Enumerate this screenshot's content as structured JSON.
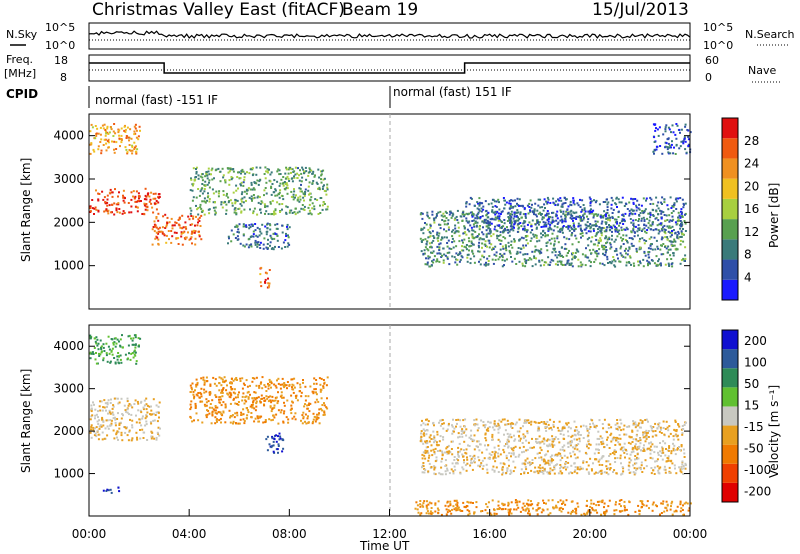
{
  "header": {
    "station": "Christmas Valley East (fitACF)",
    "beam": "Beam 19",
    "date": "15/Jul/2013"
  },
  "aux_panels": {
    "nsky_label": "N.Sky",
    "nsearch_label": "N.Search",
    "noise_ticks": [
      "10^5",
      "10^0"
    ],
    "freq_label_1": "Freq.",
    "freq_label_2": "[MHz]",
    "freq_ticks": [
      "18",
      "8"
    ],
    "nave_label": "Nave",
    "nave_ticks": [
      "60",
      "0"
    ],
    "cpid_label": "CPID",
    "cpid_segments": [
      {
        "label": "normal (fast) -151 IF",
        "start_hour": 0,
        "end_hour": 12
      },
      {
        "label": "normal (fast) 151 IF",
        "start_hour": 12,
        "end_hour": 24
      }
    ]
  },
  "colors": {
    "power_scale": [
      "#1a1aff",
      "#2f4fa8",
      "#3a7a7a",
      "#58a050",
      "#a8d040",
      "#f0c020",
      "#f09020",
      "#f05a10",
      "#e01010"
    ],
    "velocity_scale": [
      "#1010d0",
      "#2d5a9a",
      "#2e8b57",
      "#60c030",
      "#c8c8c0",
      "#e8a020",
      "#f07a00",
      "#f04000",
      "#e00000"
    ]
  },
  "chart_data": [
    {
      "type": "heatmap",
      "name": "power",
      "ylabel": "Slant Range [km]",
      "xlabel": "",
      "xlim": [
        0,
        24
      ],
      "ylim": [
        0,
        4500
      ],
      "yticks": [
        1000,
        2000,
        3000,
        4000
      ],
      "colorbar": {
        "label": "Power [dB]",
        "ticks": [
          4,
          8,
          12,
          16,
          20,
          24,
          28
        ],
        "range": [
          0,
          32
        ]
      },
      "features": [
        {
          "t": [
            0.0,
            2.8
          ],
          "range": [
            2200,
            2800
          ],
          "level": 28
        },
        {
          "t": [
            0.0,
            2.0
          ],
          "range": [
            3600,
            4300
          ],
          "level": 22
        },
        {
          "t": [
            2.5,
            4.5
          ],
          "range": [
            1500,
            2200
          ],
          "level": 26
        },
        {
          "t": [
            4.0,
            9.5
          ],
          "range": [
            2200,
            3300
          ],
          "level": 12
        },
        {
          "t": [
            5.5,
            8.0
          ],
          "range": [
            1400,
            2000
          ],
          "level": 8
        },
        {
          "t": [
            6.8,
            7.2
          ],
          "range": [
            500,
            1000
          ],
          "level": 26
        },
        {
          "t": [
            13.2,
            23.8
          ],
          "range": [
            1000,
            2300
          ],
          "level": 10
        },
        {
          "t": [
            15.0,
            23.8
          ],
          "range": [
            1800,
            2600
          ],
          "level": 6
        },
        {
          "t": [
            22.5,
            24.0
          ],
          "range": [
            3600,
            4300
          ],
          "level": 6
        }
      ]
    },
    {
      "type": "heatmap",
      "name": "velocity",
      "ylabel": "Slant Range [km]",
      "xlabel": "Time UT",
      "xlim": [
        0,
        24
      ],
      "ylim": [
        0,
        4500
      ],
      "yticks": [
        1000,
        2000,
        3000,
        4000
      ],
      "xticks": [
        "00:00",
        "04:00",
        "08:00",
        "12:00",
        "16:00",
        "20:00",
        "00:00"
      ],
      "colorbar": {
        "label": "Velocity [m s⁻¹]",
        "ticks": [
          200,
          100,
          50,
          15,
          -15,
          -50,
          -100,
          -200
        ]
      },
      "features": [
        {
          "t": [
            0.0,
            2.8
          ],
          "range": [
            1800,
            2800
          ],
          "velocity": -15
        },
        {
          "t": [
            0.0,
            2.0
          ],
          "range": [
            3600,
            4300
          ],
          "velocity": 50
        },
        {
          "t": [
            4.0,
            9.5
          ],
          "range": [
            2200,
            3300
          ],
          "velocity": -50
        },
        {
          "t": [
            7.0,
            7.8
          ],
          "range": [
            1500,
            2000
          ],
          "velocity": 200
        },
        {
          "t": [
            0.5,
            1.2
          ],
          "range": [
            550,
            700
          ],
          "velocity": 200
        },
        {
          "t": [
            13.2,
            23.8
          ],
          "range": [
            1000,
            2300
          ],
          "velocity": -15
        },
        {
          "t": [
            13.0,
            24.0
          ],
          "range": [
            0,
            400
          ],
          "velocity": -50
        }
      ]
    }
  ]
}
